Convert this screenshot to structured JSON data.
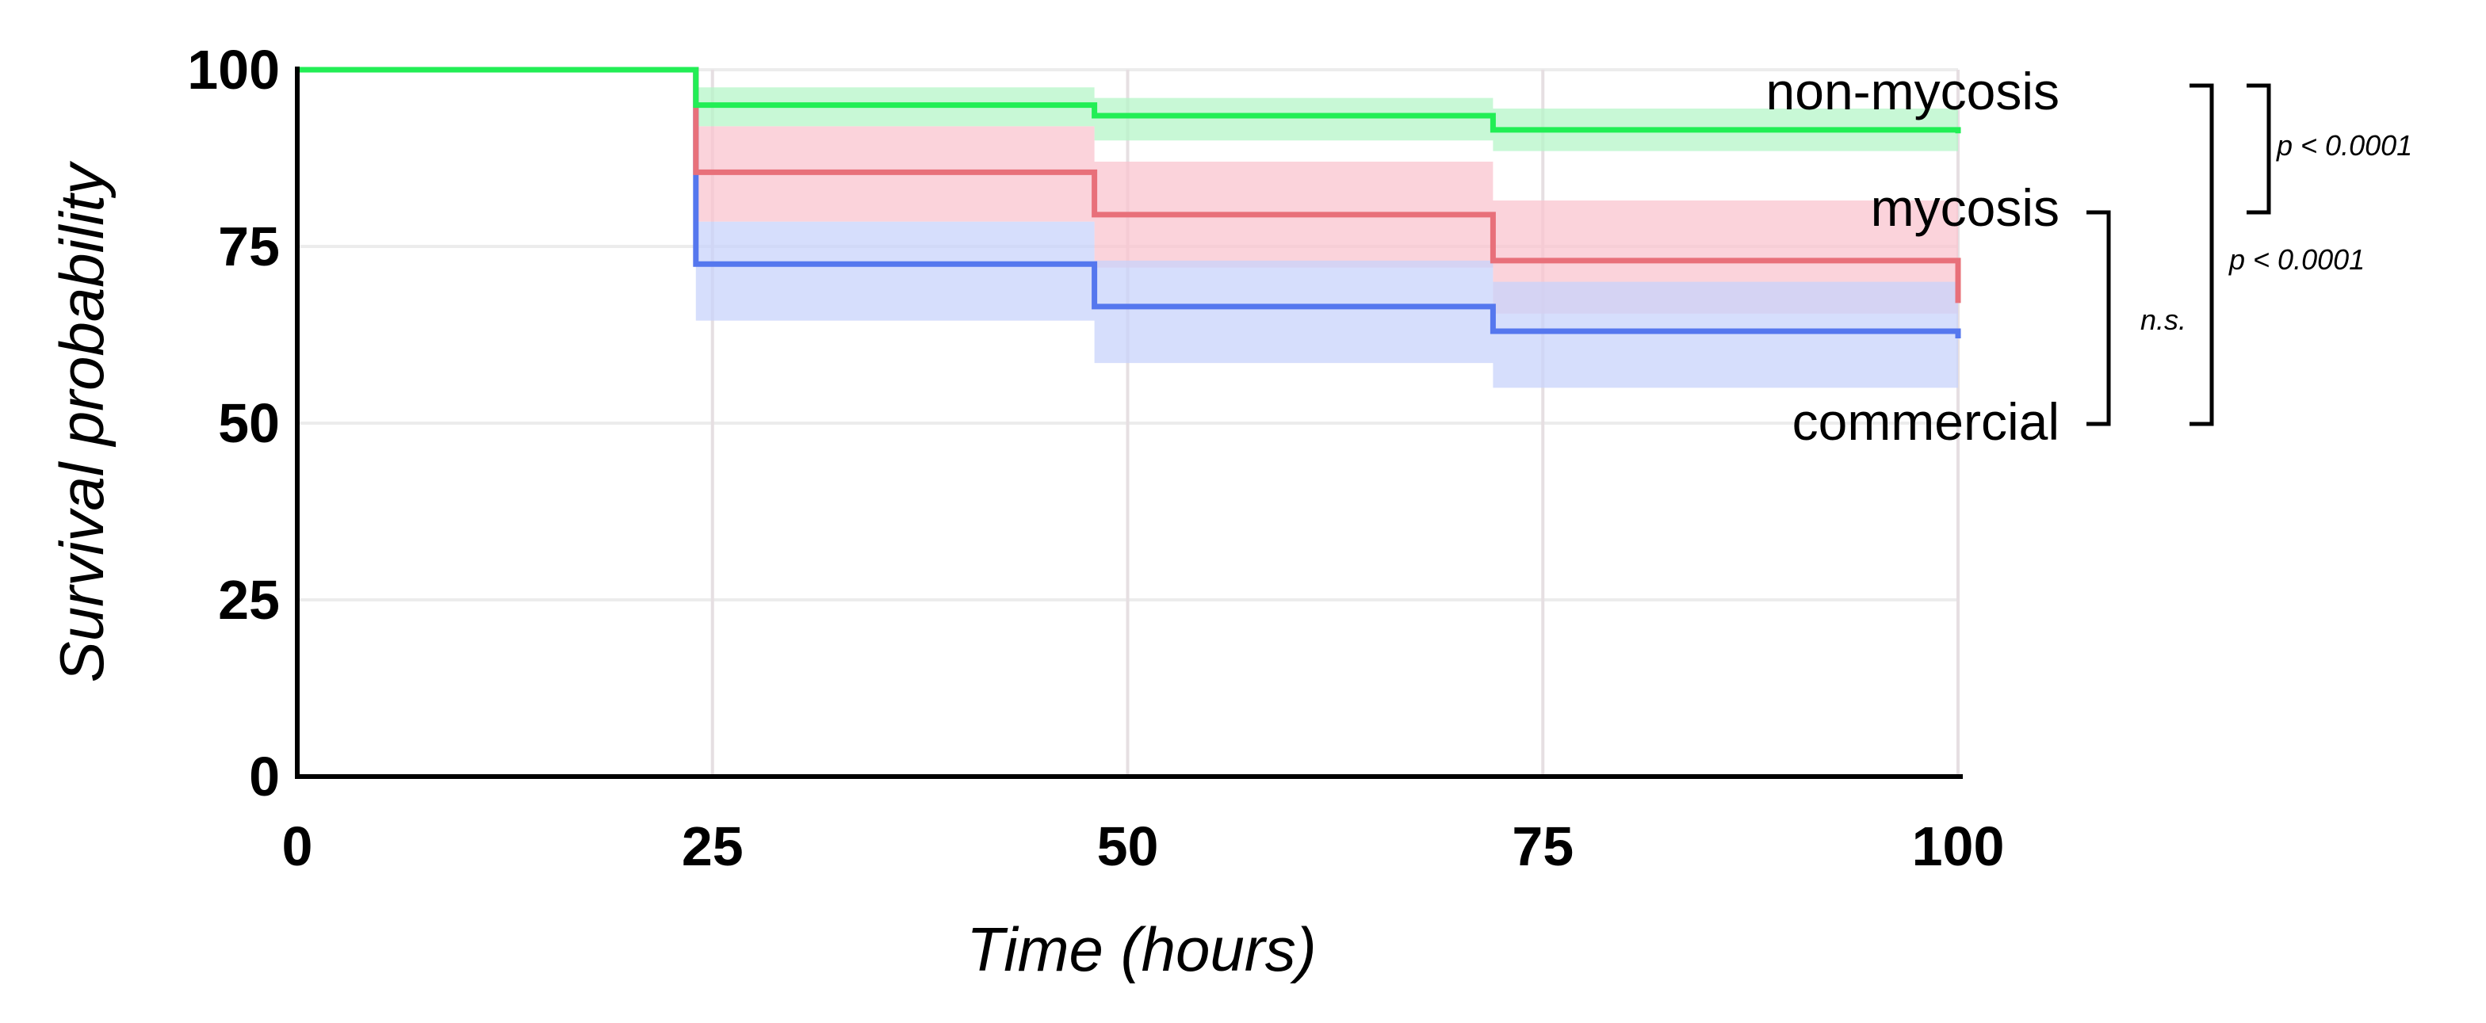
{
  "chart_data": {
    "type": "line",
    "step": true,
    "xlabel": "Time (hours)",
    "ylabel": "Survival probability",
    "xlim": [
      0,
      100
    ],
    "ylim": [
      0,
      100
    ],
    "x_ticks": [
      "0",
      "25",
      "50",
      "75",
      "100"
    ],
    "y_ticks": [
      "0",
      "25",
      "50",
      "75",
      "100"
    ],
    "grid": true,
    "series": [
      {
        "name": "non-mycosis",
        "color": "#22ee55",
        "band_color": "#b6f5c8",
        "x": [
          0,
          24,
          48,
          72,
          100
        ],
        "values": [
          100,
          95,
          93.5,
          91.5,
          91
        ],
        "lower": [
          100,
          92,
          90,
          88.5,
          88
        ],
        "upper": [
          100,
          97.5,
          96,
          94.5,
          94
        ]
      },
      {
        "name": "mycosis",
        "color": "#e8707a",
        "band_color": "#f9c4cf",
        "x": [
          0,
          24,
          48,
          72,
          100
        ],
        "values": [
          100,
          85.5,
          79.5,
          73,
          67
        ],
        "lower": [
          100,
          78.5,
          72,
          65.5,
          63
        ],
        "upper": [
          100,
          92,
          87,
          81.5,
          81.5
        ]
      },
      {
        "name": "commercial",
        "color": "#5577ee",
        "band_color": "#c8d3fb",
        "x": [
          0,
          24,
          48,
          72,
          100
        ],
        "values": [
          100,
          72.5,
          66.5,
          63,
          62
        ],
        "lower": [
          100,
          64.5,
          58.5,
          55,
          55
        ],
        "upper": [
          100,
          78.5,
          73,
          70,
          70
        ]
      }
    ],
    "annotations": [
      {
        "label": "p < 0.0001",
        "between": [
          "non-mycosis",
          "mycosis"
        ]
      },
      {
        "label": "n.s.",
        "between": [
          "mycosis",
          "commercial"
        ]
      },
      {
        "label": "p < 0.0001",
        "between": [
          "non-mycosis",
          "commercial"
        ]
      }
    ]
  }
}
